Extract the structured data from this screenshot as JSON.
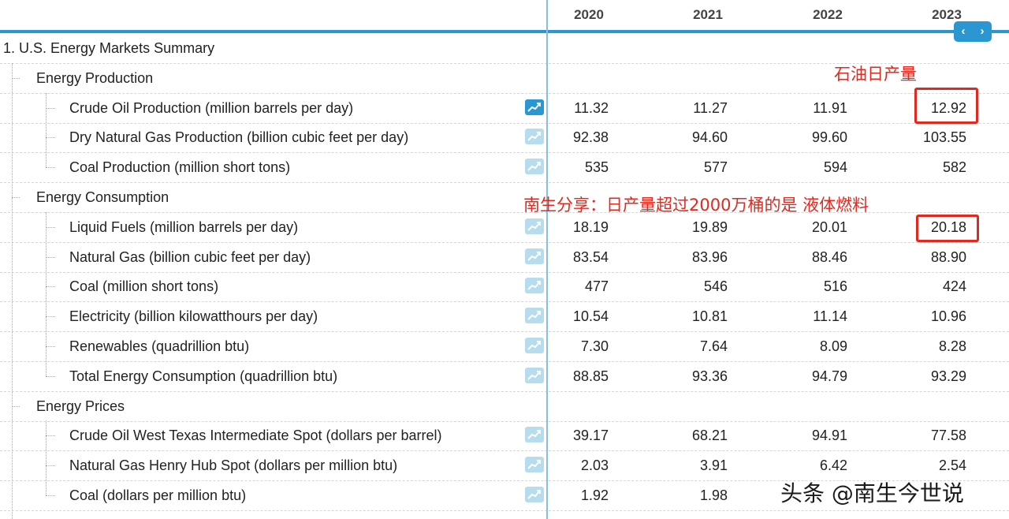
{
  "years": [
    "2020",
    "2021",
    "2022",
    "2023"
  ],
  "nav": {
    "prev": "‹",
    "next": "›"
  },
  "section_title": "1. U.S. Energy Markets Summary",
  "groups": [
    {
      "title": "Energy Production",
      "rows": [
        {
          "label": "Crude Oil Production (million barrels per day)",
          "values": [
            "11.32",
            "11.27",
            "11.91",
            "12.92"
          ]
        },
        {
          "label": "Dry Natural Gas Production (billion cubic feet per day)",
          "values": [
            "92.38",
            "94.60",
            "99.60",
            "103.55"
          ]
        },
        {
          "label": "Coal Production (million short tons)",
          "values": [
            "535",
            "577",
            "594",
            "582"
          ]
        }
      ]
    },
    {
      "title": "Energy Consumption",
      "rows": [
        {
          "label": "Liquid Fuels (million barrels per day)",
          "values": [
            "18.19",
            "19.89",
            "20.01",
            "20.18"
          ]
        },
        {
          "label": "Natural Gas (billion cubic feet per day)",
          "values": [
            "83.54",
            "83.96",
            "88.46",
            "88.90"
          ]
        },
        {
          "label": "Coal (million short tons)",
          "values": [
            "477",
            "546",
            "516",
            "424"
          ]
        },
        {
          "label": "Electricity (billion kilowatthours per day)",
          "values": [
            "10.54",
            "10.81",
            "11.14",
            "10.96"
          ]
        },
        {
          "label": "Renewables (quadrillion btu)",
          "values": [
            "7.30",
            "7.64",
            "8.09",
            "8.28"
          ]
        },
        {
          "label": "Total Energy Consumption (quadrillion btu)",
          "values": [
            "88.85",
            "93.36",
            "94.79",
            "93.29"
          ]
        }
      ]
    },
    {
      "title": "Energy Prices",
      "rows": [
        {
          "label": "Crude Oil West Texas Intermediate Spot (dollars per barrel)",
          "values": [
            "39.17",
            "68.21",
            "94.91",
            "77.58"
          ]
        },
        {
          "label": "Natural Gas Henry Hub Spot (dollars per million btu)",
          "values": [
            "2.03",
            "3.91",
            "6.42",
            "2.54"
          ]
        },
        {
          "label": "Coal (dollars per million btu)",
          "values": [
            "1.92",
            "1.98",
            "",
            ""
          ]
        }
      ]
    }
  ],
  "annotations": {
    "crude_note": "石油日产量",
    "liquid_note": "南生分享：日产量超过2000万桶的是 液体燃料"
  },
  "watermark": "头条 @南生今世说",
  "colors": {
    "accent": "#2a97d2",
    "annotation": "#e02a20"
  },
  "icons": {
    "row_chart": "line-chart-icon",
    "nav": "chevron-icon"
  }
}
